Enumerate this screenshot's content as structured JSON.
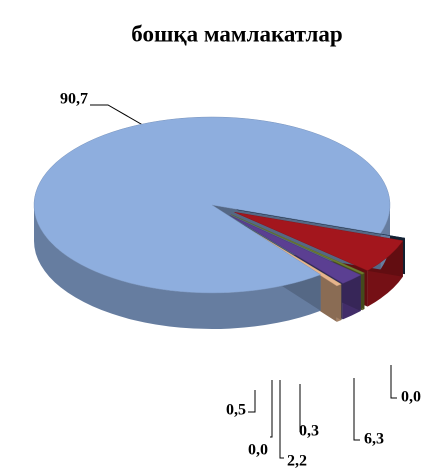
{
  "chart_data": {
    "type": "pie3d",
    "title": "бошқа мамлакатлар",
    "categories": [
      null,
      null,
      null,
      null,
      null,
      null,
      null
    ],
    "values": [
      0.0,
      6.3,
      0.3,
      2.2,
      0.0,
      0.5,
      90.7
    ],
    "value_labels": [
      "0,0",
      "6,3",
      "0,3",
      "2,2",
      "0,0",
      "0,5",
      "90,7"
    ],
    "colors": [
      "#1f3550",
      "#a3161d",
      "#6f7d2e",
      "#5b3f92",
      "#1d4a5c",
      "#e6b48c",
      "#8eaede"
    ]
  }
}
